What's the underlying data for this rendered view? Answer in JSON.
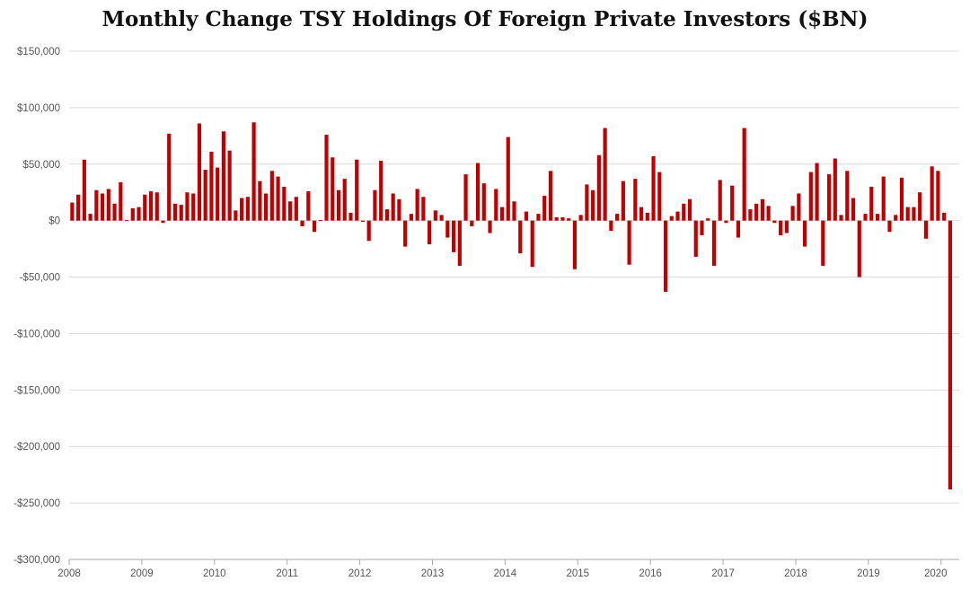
{
  "chart_data": {
    "type": "bar",
    "title": "Monthly Change TSY Holdings Of Foreign Private Investors ($BN)",
    "ylim": [
      -300000,
      150000
    ],
    "yticks": [
      150000,
      100000,
      50000,
      0,
      -50000,
      -100000,
      -150000,
      -200000,
      -250000,
      -300000
    ],
    "ytick_labels": [
      "$150,000",
      "$100,000",
      "$50,000",
      "$0",
      "-$50,000",
      "-$100,000",
      "-$150,000",
      "-$200,000",
      "-$250,000",
      "-$300,000"
    ],
    "x_tick_labels": [
      "2008",
      "2009",
      "2010",
      "2011",
      "2012",
      "2013",
      "2014",
      "2015",
      "2016",
      "2017",
      "2018",
      "2019",
      "2020"
    ],
    "start_year": 2008,
    "bar_color": "#c00000",
    "grid": true,
    "values": [
      16000,
      23000,
      54000,
      6000,
      27000,
      24000,
      28000,
      15000,
      34000,
      0,
      11000,
      12000,
      23000,
      26000,
      25000,
      -2000,
      77000,
      15000,
      14000,
      25000,
      24000,
      86000,
      45000,
      61000,
      47000,
      79000,
      62000,
      9000,
      20000,
      21000,
      87000,
      35000,
      24000,
      44000,
      39000,
      30000,
      17000,
      21000,
      -5000,
      26000,
      -10000,
      0,
      76000,
      56000,
      27000,
      37000,
      7000,
      54000,
      -1000,
      -18000,
      27000,
      53000,
      10000,
      24000,
      19000,
      -23000,
      6000,
      28000,
      21000,
      -21000,
      9000,
      5000,
      -15000,
      -28000,
      -40000,
      41000,
      -5000,
      51000,
      33000,
      -11000,
      28000,
      12000,
      74000,
      17000,
      -29000,
      8000,
      -41000,
      6000,
      22000,
      44000,
      3000,
      3000,
      2000,
      -43000,
      5000,
      32000,
      27000,
      58000,
      82000,
      -9000,
      6000,
      35000,
      -39000,
      37000,
      12000,
      7000,
      57000,
      43000,
      -63000,
      4000,
      8000,
      15000,
      19000,
      -32000,
      -13000,
      2000,
      -40000,
      36000,
      -2000,
      31000,
      -15000,
      82000,
      10000,
      15000,
      19000,
      13000,
      -2000,
      -13000,
      -11000,
      13000,
      24000,
      -23000,
      43000,
      51000,
      -40000,
      41000,
      55000,
      5000,
      44000,
      20000,
      -50000,
      6000,
      30000,
      6000,
      39000,
      -10000,
      5000,
      38000,
      12000,
      12000,
      25000,
      -16000,
      48000,
      44000,
      7000,
      -238000
    ]
  }
}
